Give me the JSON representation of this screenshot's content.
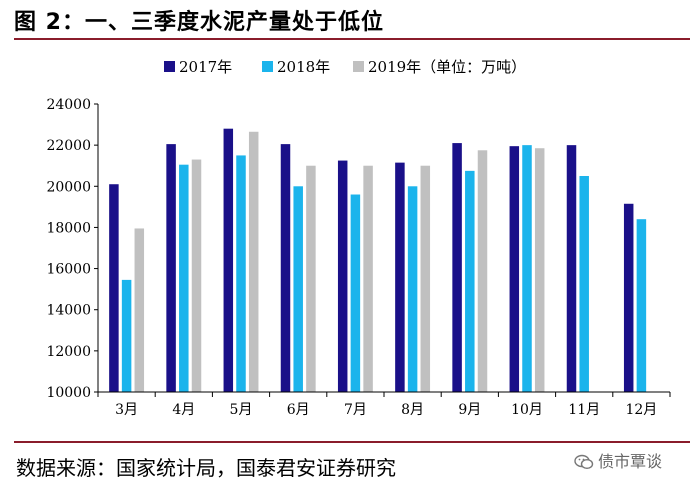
{
  "figure": {
    "title": "图 2：一、三季度水泥产量处于低位",
    "source": "数据来源：国家统计局，国泰君安证券研究",
    "watermark": "债市覃谈"
  },
  "colors": {
    "series_2017": "#1a1089",
    "series_2018": "#1bb4ec",
    "series_2019": "#c0c0c0",
    "rule": "#8a1c2b"
  },
  "chart_data": {
    "type": "bar",
    "title": "一、三季度水泥产量处于低位",
    "unit_note": "（单位：万吨）",
    "categories": [
      "3月",
      "4月",
      "5月",
      "6月",
      "7月",
      "8月",
      "9月",
      "10月",
      "11月",
      "12月"
    ],
    "series": [
      {
        "name": "2017年",
        "values": [
          20100,
          22050,
          22800,
          22050,
          21250,
          21150,
          22100,
          21950,
          22000,
          19150
        ]
      },
      {
        "name": "2018年",
        "values": [
          15450,
          21050,
          21500,
          20000,
          19600,
          20000,
          20750,
          22000,
          20500,
          18400
        ]
      },
      {
        "name": "2019年（单位：万吨）",
        "values": [
          17950,
          21300,
          22650,
          21000,
          21000,
          21000,
          21750,
          21850,
          null,
          null
        ]
      }
    ],
    "yticks": [
      "10000",
      "12000",
      "14000",
      "16000",
      "18000",
      "20000",
      "22000",
      "24000"
    ],
    "ylim": [
      10000,
      24000
    ],
    "xlabel": "",
    "ylabel": "",
    "legend_position": "top-center",
    "grid": false
  }
}
